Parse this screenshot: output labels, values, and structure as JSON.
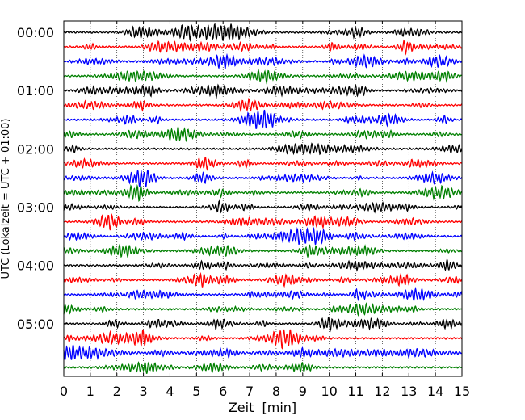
{
  "chart_data": {
    "type": "line",
    "xlabel": "Zeit  [min]",
    "ylabel": "UTC (Lokalzeit = UTC + 01:00)",
    "xlim": [
      0,
      15
    ],
    "x_ticks": [
      "0",
      "1",
      "2",
      "3",
      "4",
      "5",
      "6",
      "7",
      "8",
      "9",
      "10",
      "11",
      "12",
      "13",
      "14",
      "15"
    ],
    "y_tick_labels": [
      "00:00",
      "01:00",
      "02:00",
      "03:00",
      "04:00",
      "05:00"
    ],
    "row_minutes": 15,
    "rows_per_hour": 4,
    "row_count": 24,
    "start": "00:00",
    "color_cycle": [
      "#000000",
      "#ff0000",
      "#0000ff",
      "#008000"
    ],
    "vertical_grid": "dotted at every minute",
    "horizontal_grid": "off"
  }
}
